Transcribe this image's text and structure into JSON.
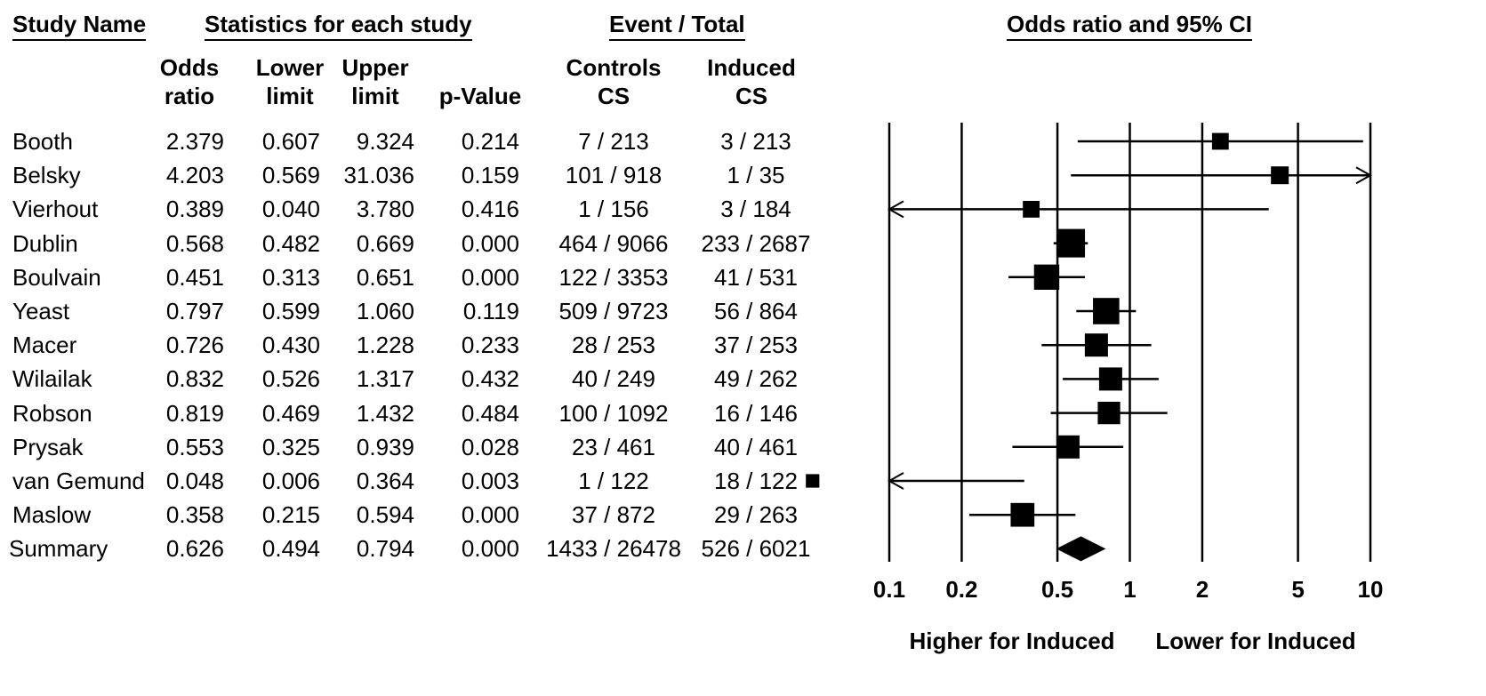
{
  "headers": {
    "study_name": "Study Name",
    "statistics": "Statistics for each study",
    "event_total": "Event / Total",
    "or_ci": "Odds ratio and 95% CI"
  },
  "columns": {
    "odds_ratio": [
      "Odds",
      "ratio"
    ],
    "lower_limit": [
      "Lower",
      "limit"
    ],
    "upper_limit": [
      "Upper",
      "limit"
    ],
    "p_value": "p-Value",
    "controls": [
      "Controls",
      "CS"
    ],
    "induced": [
      "Induced",
      "CS"
    ]
  },
  "rows": [
    {
      "study": "Booth",
      "or": "2.379",
      "lower": "0.607",
      "upper": "9.324",
      "p": "0.214",
      "controls": "7 / 213",
      "induced": "3 / 213"
    },
    {
      "study": "Belsky",
      "or": "4.203",
      "lower": "0.569",
      "upper": "31.036",
      "p": "0.159",
      "controls": "101 / 918",
      "induced": "1 / 35"
    },
    {
      "study": "Vierhout",
      "or": "0.389",
      "lower": "0.040",
      "upper": "3.780",
      "p": "0.416",
      "controls": "1 / 156",
      "induced": "3 / 184"
    },
    {
      "study": "Dublin",
      "or": "0.568",
      "lower": "0.482",
      "upper": "0.669",
      "p": "0.000",
      "controls": "464 / 9066",
      "induced": "233 / 2687"
    },
    {
      "study": "Boulvain",
      "or": "0.451",
      "lower": "0.313",
      "upper": "0.651",
      "p": "0.000",
      "controls": "122 / 3353",
      "induced": "41 / 531"
    },
    {
      "study": "Yeast",
      "or": "0.797",
      "lower": "0.599",
      "upper": "1.060",
      "p": "0.119",
      "controls": "509 / 9723",
      "induced": "56 / 864"
    },
    {
      "study": "Macer",
      "or": "0.726",
      "lower": "0.430",
      "upper": "1.228",
      "p": "0.233",
      "controls": "28 / 253",
      "induced": "37 / 253"
    },
    {
      "study": "Wilailak",
      "or": "0.832",
      "lower": "0.526",
      "upper": "1.317",
      "p": "0.432",
      "controls": "40 / 249",
      "induced": "49 / 262"
    },
    {
      "study": "Robson",
      "or": "0.819",
      "lower": "0.469",
      "upper": "1.432",
      "p": "0.484",
      "controls": "100 / 1092",
      "induced": "16 / 146"
    },
    {
      "study": "Prysak",
      "or": "0.553",
      "lower": "0.325",
      "upper": "0.939",
      "p": "0.028",
      "controls": "23 / 461",
      "induced": "40 / 461"
    },
    {
      "study": "van Gemund",
      "or": "0.048",
      "lower": "0.006",
      "upper": "0.364",
      "p": "0.003",
      "controls": "1 / 122",
      "induced": "18 / 122"
    },
    {
      "study": "Maslow",
      "or": "0.358",
      "lower": "0.215",
      "upper": "0.594",
      "p": "0.000",
      "controls": "37 / 872",
      "induced": "29 / 263"
    },
    {
      "study": "Summary",
      "or": "0.626",
      "lower": "0.494",
      "upper": "0.794",
      "p": "0.000",
      "controls": "1433 / 26478",
      "induced": "526 / 6021"
    }
  ],
  "chart_data": {
    "type": "forest",
    "title": "Odds ratio and 95% CI",
    "x_scale": "log",
    "xlim": [
      0.1,
      10
    ],
    "x_ticks": [
      0.1,
      0.2,
      0.5,
      1,
      2,
      5,
      10
    ],
    "x_tick_labels": [
      "0.1",
      "0.2",
      "0.5",
      "1",
      "2",
      "5",
      "10"
    ],
    "left_label": "Higher for Induced",
    "right_label": "Lower for Induced",
    "series": [
      {
        "name": "Booth",
        "or": 2.379,
        "lower": 0.607,
        "upper": 9.324,
        "weight": 0.45
      },
      {
        "name": "Belsky",
        "or": 4.203,
        "lower": 0.569,
        "upper": 31.036,
        "weight": 0.5
      },
      {
        "name": "Vierhout",
        "or": 0.389,
        "lower": 0.04,
        "upper": 3.78,
        "weight": 0.45
      },
      {
        "name": "Dublin",
        "or": 0.568,
        "lower": 0.482,
        "upper": 0.669,
        "weight": 1.0
      },
      {
        "name": "Boulvain",
        "or": 0.451,
        "lower": 0.313,
        "upper": 0.651,
        "weight": 0.85
      },
      {
        "name": "Yeast",
        "or": 0.797,
        "lower": 0.599,
        "upper": 1.06,
        "weight": 0.9
      },
      {
        "name": "Macer",
        "or": 0.726,
        "lower": 0.43,
        "upper": 1.228,
        "weight": 0.75
      },
      {
        "name": "Wilailak",
        "or": 0.832,
        "lower": 0.526,
        "upper": 1.317,
        "weight": 0.75
      },
      {
        "name": "Robson",
        "or": 0.819,
        "lower": 0.469,
        "upper": 1.432,
        "weight": 0.72
      },
      {
        "name": "Prysak",
        "or": 0.553,
        "lower": 0.325,
        "upper": 0.939,
        "weight": 0.75
      },
      {
        "name": "van Gemund",
        "or": 0.048,
        "lower": 0.006,
        "upper": 0.364,
        "weight": 0.3
      },
      {
        "name": "Maslow",
        "or": 0.358,
        "lower": 0.215,
        "upper": 0.594,
        "weight": 0.78
      }
    ],
    "summary": {
      "name": "Summary",
      "or": 0.626,
      "lower": 0.494,
      "upper": 0.794
    },
    "grid": false
  }
}
